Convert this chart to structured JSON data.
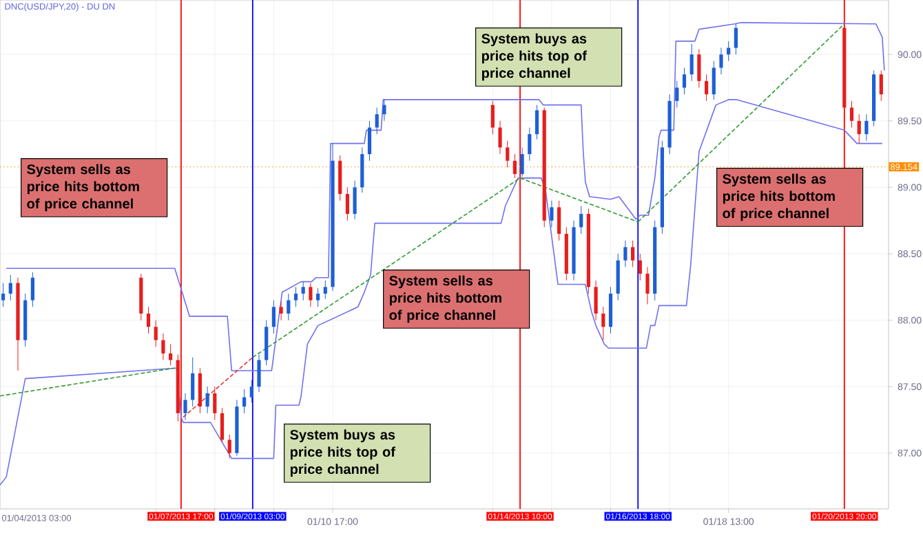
{
  "chart_data": {
    "type": "candlestick",
    "title": "DNC(USD/JPY,20) -  DU  DN",
    "x": [
      "2013-01-04T04:30",
      "2013-01-04T08:00",
      "2013-01-04T11:30",
      "2013-01-04T15:00",
      "2013-01-04T18:30",
      "2013-01-06T22:00",
      "2013-01-07T01:30",
      "2013-01-07T05:00",
      "2013-01-07T08:30",
      "2013-01-07T12:00",
      "2013-01-07T15:30",
      "2013-01-07T19:00",
      "2013-01-07T22:30",
      "2013-01-08T02:00",
      "2013-01-08T05:30",
      "2013-01-08T09:00",
      "2013-01-08T12:30",
      "2013-01-08T16:00",
      "2013-01-08T19:30",
      "2013-01-08T23:00",
      "2013-01-09T02:30",
      "2013-01-09T06:00",
      "2013-01-09T09:30",
      "2013-01-09T13:00",
      "2013-01-09T16:30",
      "2013-01-09T20:00",
      "2013-01-09T23:30",
      "2013-01-10T03:00",
      "2013-01-10T06:30",
      "2013-01-10T10:00",
      "2013-01-10T13:30",
      "2013-01-10T17:00",
      "2013-01-10T20:30",
      "2013-01-11T00:00",
      "2013-01-11T03:30",
      "2013-01-11T07:00",
      "2013-01-11T10:30",
      "2013-01-11T14:00",
      "2013-01-11T17:30",
      "2013-01-13T21:00",
      "2013-01-14T00:30",
      "2013-01-14T04:00",
      "2013-01-14T07:30",
      "2013-01-14T11:00",
      "2013-01-14T14:30",
      "2013-01-14T18:00",
      "2013-01-14T21:30",
      "2013-01-15T01:00",
      "2013-01-15T04:30",
      "2013-01-15T08:00",
      "2013-01-15T11:30",
      "2013-01-15T15:00",
      "2013-01-15T18:30",
      "2013-01-15T22:00",
      "2013-01-16T01:30",
      "2013-01-16T05:00",
      "2013-01-16T08:30",
      "2013-01-16T12:00",
      "2013-01-16T15:30",
      "2013-01-16T19:00",
      "2013-01-16T22:30",
      "2013-01-17T02:00",
      "2013-01-17T05:30",
      "2013-01-17T09:00",
      "2013-01-17T12:30",
      "2013-01-17T16:00",
      "2013-01-17T19:30",
      "2013-01-17T23:00",
      "2013-01-18T02:30",
      "2013-01-18T06:00",
      "2013-01-18T09:30",
      "2013-01-18T13:00",
      "2013-01-18T16:30",
      "2013-01-20T20:00",
      "2013-01-20T23:30",
      "2013-01-21T03:00",
      "2013-01-21T06:30",
      "2013-01-21T10:00",
      "2013-01-21T13:30"
    ],
    "ohlc": [
      [
        88.15,
        88.28,
        88.1,
        88.2
      ],
      [
        88.2,
        88.34,
        88.15,
        88.28
      ],
      [
        88.28,
        88.32,
        87.62,
        87.85
      ],
      [
        87.85,
        88.2,
        87.8,
        88.15
      ],
      [
        88.15,
        88.36,
        88.1,
        88.32
      ],
      [
        88.32,
        88.35,
        88.0,
        88.05
      ],
      [
        88.05,
        88.1,
        87.9,
        87.95
      ],
      [
        87.95,
        88.0,
        87.8,
        87.85
      ],
      [
        87.85,
        87.9,
        87.7,
        87.75
      ],
      [
        87.75,
        87.82,
        87.66,
        87.7
      ],
      [
        87.7,
        87.74,
        87.24,
        87.3
      ],
      [
        87.3,
        87.45,
        87.25,
        87.4
      ],
      [
        87.4,
        87.72,
        87.35,
        87.6
      ],
      [
        87.6,
        87.64,
        87.3,
        87.35
      ],
      [
        87.35,
        87.5,
        87.3,
        87.45
      ],
      [
        87.45,
        87.5,
        87.25,
        87.3
      ],
      [
        87.3,
        87.34,
        87.08,
        87.1
      ],
      [
        87.1,
        87.14,
        86.96,
        87.0
      ],
      [
        87.0,
        87.4,
        86.98,
        87.35
      ],
      [
        87.35,
        87.48,
        87.3,
        87.42
      ],
      [
        87.42,
        87.55,
        87.38,
        87.5
      ],
      [
        87.5,
        87.74,
        87.46,
        87.7
      ],
      [
        87.7,
        88.0,
        87.66,
        87.95
      ],
      [
        87.95,
        88.15,
        87.9,
        88.1
      ],
      [
        88.1,
        88.14,
        88.0,
        88.05
      ],
      [
        88.05,
        88.2,
        88.0,
        88.15
      ],
      [
        88.15,
        88.25,
        88.1,
        88.2
      ],
      [
        88.2,
        88.29,
        88.15,
        88.25
      ],
      [
        88.25,
        88.28,
        88.1,
        88.15
      ],
      [
        88.15,
        88.24,
        88.1,
        88.2
      ],
      [
        88.2,
        88.3,
        88.16,
        88.25
      ],
      [
        88.25,
        89.33,
        88.22,
        89.2
      ],
      [
        89.2,
        89.24,
        88.9,
        88.95
      ],
      [
        88.95,
        89.0,
        88.75,
        88.8
      ],
      [
        88.8,
        89.05,
        88.76,
        89.0
      ],
      [
        89.0,
        89.3,
        88.96,
        89.25
      ],
      [
        89.25,
        89.5,
        89.2,
        89.45
      ],
      [
        89.45,
        89.6,
        89.4,
        89.55
      ],
      [
        89.55,
        89.66,
        89.5,
        89.62
      ],
      [
        89.62,
        89.65,
        89.4,
        89.45
      ],
      [
        89.45,
        89.5,
        89.25,
        89.3
      ],
      [
        89.3,
        89.35,
        89.15,
        89.2
      ],
      [
        89.2,
        89.25,
        89.07,
        89.1
      ],
      [
        89.1,
        89.3,
        89.08,
        89.25
      ],
      [
        89.25,
        89.45,
        89.2,
        89.4
      ],
      [
        89.4,
        89.62,
        89.36,
        89.58
      ],
      [
        89.58,
        89.6,
        88.7,
        88.75
      ],
      [
        88.75,
        88.9,
        88.7,
        88.85
      ],
      [
        88.85,
        88.9,
        88.6,
        88.65
      ],
      [
        88.65,
        88.7,
        88.3,
        88.35
      ],
      [
        88.35,
        88.75,
        88.3,
        88.7
      ],
      [
        88.7,
        88.86,
        88.65,
        88.8
      ],
      [
        88.8,
        88.84,
        88.2,
        88.25
      ],
      [
        88.25,
        88.3,
        88.0,
        88.05
      ],
      [
        88.05,
        88.1,
        87.85,
        87.95
      ],
      [
        87.95,
        88.25,
        87.9,
        88.2
      ],
      [
        88.2,
        88.5,
        88.15,
        88.45
      ],
      [
        88.45,
        88.6,
        88.4,
        88.55
      ],
      [
        88.55,
        88.6,
        88.4,
        88.45
      ],
      [
        88.45,
        88.5,
        88.3,
        88.35
      ],
      [
        88.35,
        88.4,
        88.12,
        88.2
      ],
      [
        88.2,
        88.75,
        88.15,
        88.7
      ],
      [
        88.7,
        89.35,
        88.65,
        89.3
      ],
      [
        89.3,
        89.7,
        89.25,
        89.65
      ],
      [
        89.65,
        89.8,
        89.6,
        89.75
      ],
      [
        89.75,
        89.9,
        89.7,
        89.85
      ],
      [
        89.85,
        90.08,
        89.8,
        90.0
      ],
      [
        90.0,
        90.04,
        89.75,
        89.8
      ],
      [
        89.8,
        89.85,
        89.65,
        89.7
      ],
      [
        89.7,
        89.95,
        89.66,
        89.9
      ],
      [
        89.9,
        90.05,
        89.85,
        90.0
      ],
      [
        90.0,
        90.1,
        89.95,
        90.05
      ],
      [
        90.05,
        90.23,
        90.0,
        90.2
      ],
      [
        90.2,
        90.22,
        89.5,
        89.6
      ],
      [
        89.6,
        89.65,
        89.45,
        89.5
      ],
      [
        89.5,
        89.55,
        89.33,
        89.4
      ],
      [
        89.4,
        89.55,
        89.35,
        89.5
      ],
      [
        89.5,
        89.88,
        89.46,
        89.85
      ],
      [
        89.85,
        89.88,
        89.65,
        89.7
      ]
    ],
    "series": [
      {
        "type": "line",
        "color": "#7070f0",
        "x": [
          "2013-01-04T06:00",
          "2013-01-07T14:00",
          "2013-01-07T21:00",
          "2013-01-08T15:00",
          "2013-01-08T17:00",
          "2013-01-09T12:00",
          "2013-01-09T17:00",
          "2013-01-10T02:00",
          "2013-01-10T07:00",
          "2013-01-10T09:00",
          "2013-01-10T15:00",
          "2013-01-10T16:00",
          "2013-01-11T08:00",
          "2013-01-11T09:00",
          "2013-01-11T16:00",
          "2013-01-11T17:00",
          "2013-01-14T19:00",
          "2013-01-14T21:00",
          "2013-01-15T15:00",
          "2013-01-15T16:00",
          "2013-01-15T17:00",
          "2013-01-15T19:00",
          "2013-01-16T05:00",
          "2013-01-16T09:00",
          "2013-01-16T17:00",
          "2013-01-16T19:00",
          "2013-01-16T23:00",
          "2013-01-17T02:00",
          "2013-01-17T04:00",
          "2013-01-17T05:00",
          "2013-01-17T11:00",
          "2013-01-17T12:00",
          "2013-01-17T21:00",
          "2013-01-17T23:00",
          "2013-01-18T16:00",
          "2013-01-18T19:00",
          "2013-01-21T11:00",
          "2013-01-21T14:00",
          "2013-01-21T15:00"
        ],
        "values": [
          88.39,
          88.39,
          88.03,
          88.03,
          87.62,
          87.62,
          88.21,
          88.29,
          88.29,
          88.32,
          88.32,
          89.33,
          89.33,
          89.43,
          89.43,
          89.66,
          89.66,
          89.62,
          89.62,
          89.27,
          89.04,
          88.93,
          88.91,
          88.93,
          88.76,
          88.79,
          88.79,
          89.07,
          89.38,
          89.43,
          89.43,
          90.1,
          90.1,
          90.19,
          90.23,
          90.24,
          90.23,
          90.13,
          89.88
        ]
      },
      {
        "type": "line",
        "color": "#7070f0",
        "x": [
          "2013-01-04T03:00",
          "2013-01-04T06:00",
          "2013-01-04T15:00",
          "2013-01-07T15:00",
          "2013-01-07T17:00",
          "2013-01-07T18:00",
          "2013-01-08T07:00",
          "2013-01-08T17:00",
          "2013-01-09T13:00",
          "2013-01-09T14:00",
          "2013-01-10T01:00",
          "2013-01-10T02:00",
          "2013-01-10T05:00",
          "2013-01-10T10:00",
          "2013-01-11T05:00",
          "2013-01-11T08:00",
          "2013-01-11T11:00",
          "2013-01-11T13:00",
          "2013-01-14T01:00",
          "2013-01-14T03:00",
          "2013-01-14T09:00",
          "2013-01-14T20:00",
          "2013-01-14T22:00",
          "2013-01-15T04:00",
          "2013-01-15T17:00",
          "2013-01-15T20:00",
          "2013-01-15T22:00",
          "2013-01-16T02:00",
          "2013-01-16T04:00",
          "2013-01-16T22:00",
          "2013-01-17T00:00",
          "2013-01-17T02:00",
          "2013-01-17T04:00",
          "2013-01-17T17:00",
          "2013-01-17T19:00",
          "2013-01-17T23:00",
          "2013-01-18T07:00",
          "2013-01-18T13:00",
          "2013-01-18T17:00",
          "2013-01-20T20:00",
          "2013-01-21T02:00",
          "2013-01-21T14:00"
        ],
        "values": [
          86.76,
          86.82,
          87.56,
          87.64,
          87.27,
          87.23,
          87.23,
          86.96,
          86.96,
          87.36,
          87.36,
          87.43,
          87.82,
          87.96,
          88.1,
          88.21,
          88.34,
          88.73,
          88.73,
          88.86,
          89.07,
          89.07,
          88.99,
          88.27,
          88.27,
          88.06,
          87.96,
          87.82,
          87.79,
          87.79,
          87.96,
          87.96,
          88.11,
          88.11,
          88.41,
          89.27,
          89.62,
          89.66,
          89.66,
          89.43,
          89.33,
          89.33
        ]
      },
      {
        "type": "line",
        "color": "#2e9a2e",
        "line_style": "dashed",
        "x": [
          "2013-01-04T03:00",
          "2013-01-07T14:00"
        ],
        "values": [
          87.43,
          87.64
        ]
      },
      {
        "type": "line",
        "color": "#e03030",
        "line_style": "dashed",
        "x": [
          "2013-01-07T18:00",
          "2013-01-09T03:00"
        ],
        "values": [
          87.27,
          87.72
        ]
      },
      {
        "type": "line",
        "color": "#2e9a2e",
        "line_style": "dashed",
        "x": [
          "2013-01-09T03:00",
          "2013-01-14T10:00"
        ],
        "values": [
          87.72,
          89.07
        ]
      },
      {
        "type": "line",
        "color": "#2e9a2e",
        "line_style": "dashed",
        "x": [
          "2013-01-14T10:00",
          "2013-01-16T18:00"
        ],
        "values": [
          89.07,
          88.74
        ]
      },
      {
        "type": "line",
        "color": "#2e9a2e",
        "line_style": "dashed",
        "x": [
          "2013-01-16T18:00",
          "2013-01-20T20:00"
        ],
        "values": [
          88.74,
          90.23
        ]
      }
    ],
    "xlim": [
      "2013-01-04T03:00",
      "2013-01-21T17:00"
    ],
    "ylim": [
      86.58,
      90.41
    ],
    "xticks": [
      {
        "value": "2013-01-07T05:00",
        "label": null
      },
      {
        "value": "2013-01-08T09:00",
        "label": null
      },
      {
        "value": "2013-01-09T13:00",
        "label": null
      },
      {
        "value": "2013-01-10T17:00",
        "label": "01/10 17:00"
      },
      {
        "value": "2013-01-13T21:00",
        "label": null
      },
      {
        "value": "2013-01-15T01:00",
        "label": null
      },
      {
        "value": "2013-01-16T05:00",
        "label": null
      },
      {
        "value": "2013-01-17T09:00",
        "label": null
      },
      {
        "value": "2013-01-18T13:00",
        "label": "01/18 13:00"
      }
    ],
    "yticks": [
      {
        "value": 87,
        "label": "87.00"
      },
      {
        "value": 87.5,
        "label": "87.50"
      },
      {
        "value": 88,
        "label": "88.00"
      },
      {
        "value": 88.5,
        "label": "88.50"
      },
      {
        "value": 89,
        "label": "89.00"
      },
      {
        "value": 89.5,
        "label": "89.50"
      },
      {
        "value": 90,
        "label": "90.00"
      }
    ],
    "grid": true,
    "ref_lines": [
      {
        "axis": "x",
        "value": "2013-01-07T17:00",
        "label": "01/07/2013 17:00",
        "color": "#ff0000"
      },
      {
        "axis": "x",
        "value": "2013-01-09T03:00",
        "label": "01/09/2013 03:00",
        "color": "#0000ff"
      },
      {
        "axis": "x",
        "value": "2013-01-14T10:00",
        "label": "01/14/2013 10:00",
        "color": "#ff0000"
      },
      {
        "axis": "x",
        "value": "2013-01-16T18:00",
        "label": "01/16/2013 18:00",
        "color": "#0000ff"
      },
      {
        "axis": "x",
        "value": "2013-01-20T20:00",
        "label": "01/20/2013 20:00",
        "color": "#ff0000"
      },
      {
        "axis": "y",
        "value": 89.154,
        "label": "89.154",
        "color": "#ff8c00",
        "line_style": "dotted"
      }
    ],
    "annotations": [
      "System sells as price hits bottom of price channel",
      "System buys as price hits top of price channel",
      "System sells as price hits bottom of price channel",
      "System buys as price hits top of price channel",
      "System sells as price hits bottom of price channel",
      "01/04/2013 03:00"
    ]
  }
}
